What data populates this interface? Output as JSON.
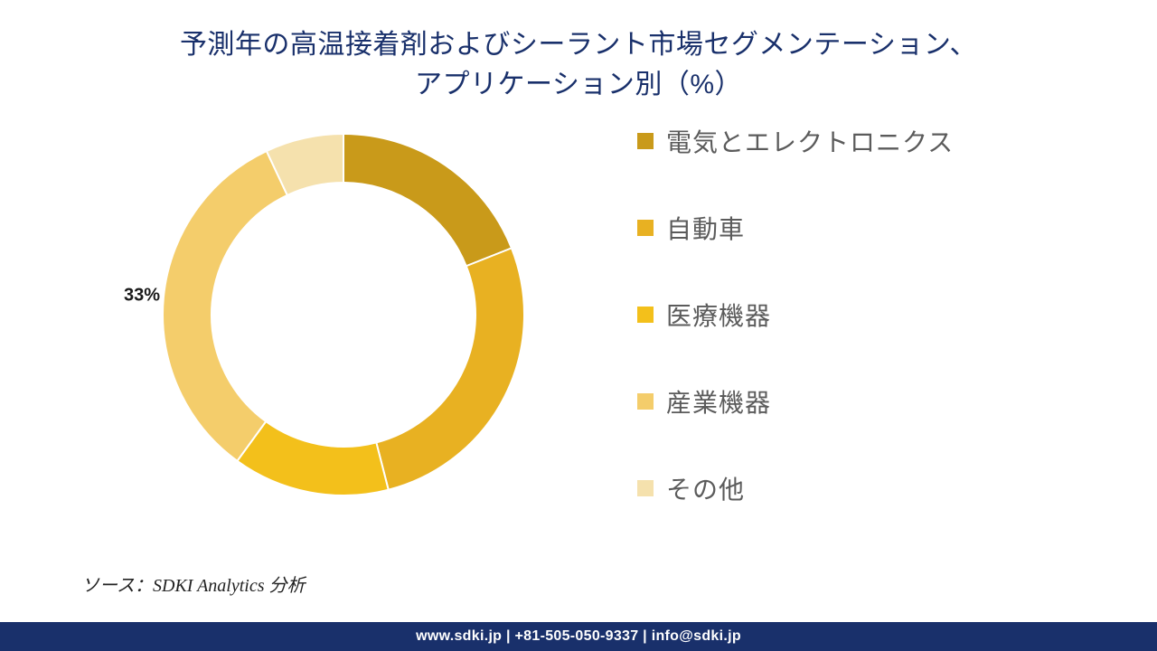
{
  "title_line1": "予測年の高温接着剤およびシーラント市場セグメンテーション、",
  "title_line2": "アプリケーション別（%）",
  "title_color": "#19306b",
  "title_fontsize": 30,
  "chart": {
    "type": "donut",
    "outer_radius": 200,
    "inner_radius": 146,
    "start_angle_deg": 0,
    "gap_color": "#ffffff",
    "gap_width": 2,
    "slices": [
      {
        "label": "電気とエレクトロニクス",
        "value": 19,
        "color": "#c99a1a"
      },
      {
        "label": "自動車",
        "value": 27,
        "color": "#e8b122"
      },
      {
        "label": "医療機器",
        "value": 14,
        "color": "#f3c01b"
      },
      {
        "label": "産業機器",
        "value": 33,
        "color": "#f4cd6b",
        "data_label": "33%"
      },
      {
        "label": "その他",
        "value": 7,
        "color": "#f5e1ad"
      }
    ]
  },
  "legend": {
    "swatch_size": 18,
    "label_color": "#5b5b5b",
    "label_fontsize": 28
  },
  "source_text": "ソース：SDKI Analytics 分析",
  "footer_text": "www.sdki.jp | +81-505-050-9337 | info@sdki.jp",
  "footer_bg": "#19306b",
  "footer_color": "#ffffff",
  "background_color": "#ffffff"
}
